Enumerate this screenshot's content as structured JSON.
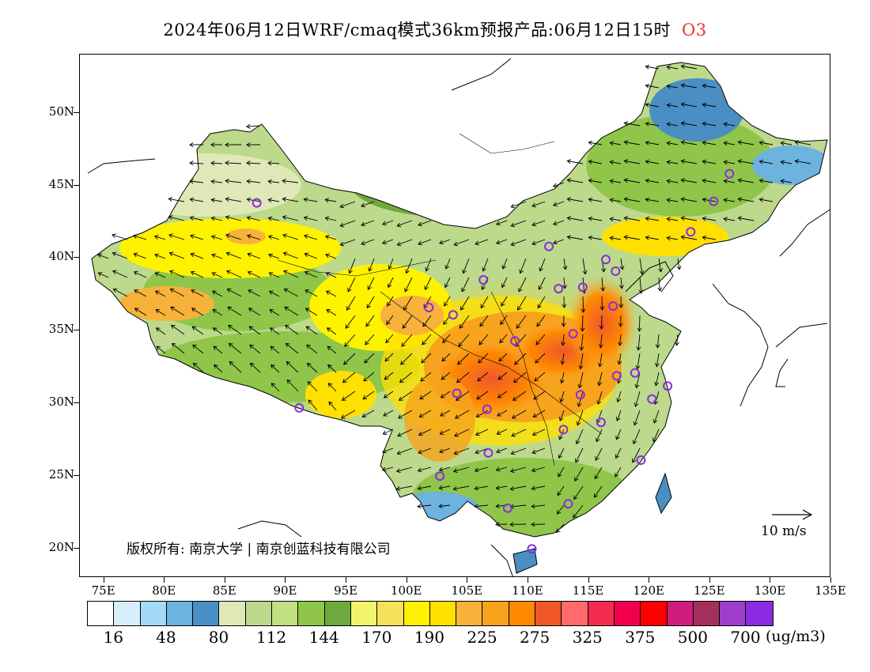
{
  "title": {
    "main": "2024年06月12日WRF/cmaq模式36km预报产品:06月12日15时",
    "species": "O3"
  },
  "map": {
    "lat_labels": [
      "50N",
      "45N",
      "40N",
      "35N",
      "30N",
      "25N",
      "20N"
    ],
    "lon_labels": [
      "75E",
      "80E",
      "85E",
      "90E",
      "95E",
      "100E",
      "105E",
      "110E",
      "115E",
      "120E",
      "125E",
      "130E",
      "135E"
    ],
    "lon_range": [
      73,
      135
    ],
    "lat_range": [
      18,
      54
    ],
    "copyright": "版权所有: 南京大学 | 南京创蓝科技有限公司",
    "wind_reference": "10 m/s",
    "stations": [
      [
        87.6,
        43.8
      ],
      [
        91.1,
        29.7
      ],
      [
        101.8,
        36.6
      ],
      [
        103.8,
        36.1
      ],
      [
        106.3,
        38.5
      ],
      [
        104.1,
        30.7
      ],
      [
        106.6,
        29.6
      ],
      [
        106.7,
        26.6
      ],
      [
        102.7,
        25.0
      ],
      [
        108.3,
        22.8
      ],
      [
        110.3,
        20.0
      ],
      [
        113.3,
        23.1
      ],
      [
        116.0,
        28.7
      ],
      [
        112.9,
        28.2
      ],
      [
        114.3,
        30.6
      ],
      [
        113.7,
        34.8
      ],
      [
        108.9,
        34.3
      ],
      [
        112.5,
        37.9
      ],
      [
        114.5,
        38.0
      ],
      [
        111.7,
        40.8
      ],
      [
        116.4,
        39.9
      ],
      [
        117.2,
        39.1
      ],
      [
        117.0,
        36.7
      ],
      [
        117.3,
        31.9
      ],
      [
        118.8,
        32.1
      ],
      [
        121.5,
        31.2
      ],
      [
        120.2,
        30.3
      ],
      [
        119.3,
        26.1
      ],
      [
        123.4,
        41.8
      ],
      [
        125.3,
        43.9
      ],
      [
        126.6,
        45.8
      ]
    ]
  },
  "colorbar": {
    "colors": [
      "#ffffff",
      "#d6effb",
      "#a3daf5",
      "#6cb3df",
      "#4a8fc4",
      "#dfe9b8",
      "#bcd98c",
      "#c2df82",
      "#8fc64a",
      "#6fa83c",
      "#f2f56b",
      "#f3e25a",
      "#fff200",
      "#ffe000",
      "#f7b23c",
      "#f7a31c",
      "#ff8a00",
      "#f0582a",
      "#ff6b6b",
      "#f22c4e",
      "#f2004e",
      "#ff0000",
      "#d01c7c",
      "#a3305a",
      "#9c3ecb",
      "#8a2be2"
    ],
    "labels": [
      "16",
      "48",
      "80",
      "112",
      "144",
      "170",
      "190",
      "225",
      "275",
      "325",
      "375",
      "500",
      "700"
    ],
    "units": "(ug/m3)"
  }
}
